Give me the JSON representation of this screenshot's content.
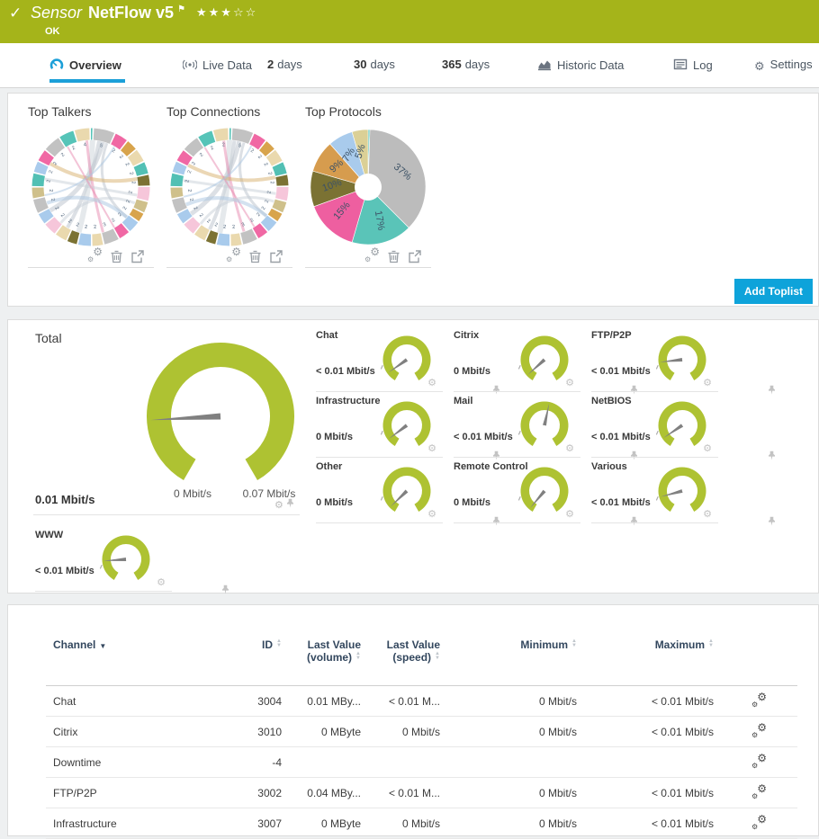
{
  "header": {
    "kind_label": "Sensor",
    "sensor_name": "NetFlow v5",
    "flag": "⚑",
    "rating": "★★★☆☆",
    "status": "OK",
    "check": "✓"
  },
  "tabs": [
    {
      "id": "overview",
      "icon": "gauge",
      "label": "Overview",
      "active": true
    },
    {
      "id": "live-data",
      "icon": "live",
      "label": "Live Data",
      "active": false
    },
    {
      "id": "2-days",
      "num": "2",
      "label": "days",
      "active": false
    },
    {
      "id": "30-days",
      "num": "30",
      "label": "days",
      "active": false
    },
    {
      "id": "365-days",
      "num": "365",
      "label": "days",
      "active": false
    },
    {
      "id": "historic-data",
      "icon": "historic",
      "label": "Historic Data",
      "active": false
    },
    {
      "id": "log",
      "icon": "log",
      "label": "Log",
      "active": false
    },
    {
      "id": "settings",
      "icon": "settings",
      "label": "Settings",
      "active": false
    }
  ],
  "toplists": {
    "titles": [
      "Top Talkers",
      "Top Connections",
      "Top Protocols"
    ],
    "add_button_label": "Add Toplist",
    "item_actions": [
      "settings-gears-icon",
      "delete-trash-icon",
      "open-external-icon"
    ]
  },
  "chart_data": [
    {
      "type": "chord",
      "title": "Top Talkers",
      "segments": [
        [
          "#56c4b8",
          3
        ],
        [
          "#c2c2c2",
          22
        ],
        [
          "#f068a4",
          14
        ],
        [
          "#d8a44c",
          12
        ],
        [
          "#ead9ae",
          14
        ],
        [
          "#52c0b4",
          13
        ],
        [
          "#7b7233",
          12
        ],
        [
          "#f6c6da",
          15
        ],
        [
          "#cfc08b",
          12
        ],
        [
          "#d8a44c",
          10
        ],
        [
          "#a9cbec",
          13
        ],
        [
          "#f068a4",
          12
        ],
        [
          "#c2c2c2",
          16
        ],
        [
          "#ead9ae",
          12
        ],
        [
          "#a9cbec",
          14
        ],
        [
          "#7b7233",
          11
        ],
        [
          "#ead9ae",
          13
        ],
        [
          "#f6c6da",
          14
        ],
        [
          "#a9cbec",
          12
        ],
        [
          "#c2c2c2",
          15
        ],
        [
          "#cfc08b",
          12
        ],
        [
          "#52c0b4",
          14
        ],
        [
          "#a9cbec",
          12
        ],
        [
          "#f068a4",
          13
        ],
        [
          "#c2c2c2",
          18
        ],
        [
          "#56c4b8",
          16
        ],
        [
          "#ead9ae",
          16
        ]
      ],
      "labels": [
        "",
        "5",
        "2",
        "2",
        "2",
        "2",
        "2",
        "2",
        "2",
        "2",
        "2",
        "2",
        "3",
        "2",
        "2",
        "2",
        "2",
        "2",
        "2",
        "2",
        "2",
        "2",
        "2",
        "2",
        "2",
        "2",
        "4"
      ],
      "chords": [
        {
          "a": 75,
          "b": 210,
          "c": "#b9c2cc",
          "w": 5
        },
        {
          "a": 80,
          "b": 240,
          "c": "#b9c2cc",
          "w": 4
        },
        {
          "a": 88,
          "b": 255,
          "c": "#ccd3da",
          "w": 6
        },
        {
          "a": 95,
          "b": 285,
          "c": "#e88ab0",
          "w": 3
        },
        {
          "a": 70,
          "b": 320,
          "c": "#b9c2cc",
          "w": 3
        },
        {
          "a": 150,
          "b": 10,
          "c": "#d8b06c",
          "w": 4
        },
        {
          "a": 170,
          "b": 350,
          "c": "#c7d0d8",
          "w": 3
        },
        {
          "a": 120,
          "b": 300,
          "c": "#e88ab0",
          "w": 2
        },
        {
          "a": 200,
          "b": 320,
          "c": "#aac6e2",
          "w": 4
        },
        {
          "a": 230,
          "b": 340,
          "c": "#c7d0d8",
          "w": 3
        },
        {
          "a": 60,
          "b": 190,
          "c": "#aac6e2",
          "w": 2
        }
      ]
    },
    {
      "type": "chord",
      "title": "Top Connections",
      "segments": [
        [
          "#56c4b8",
          3
        ],
        [
          "#c2c2c2",
          22
        ],
        [
          "#f068a4",
          14
        ],
        [
          "#d8a44c",
          12
        ],
        [
          "#ead9ae",
          14
        ],
        [
          "#52c0b4",
          13
        ],
        [
          "#7b7233",
          12
        ],
        [
          "#f6c6da",
          15
        ],
        [
          "#cfc08b",
          12
        ],
        [
          "#d8a44c",
          10
        ],
        [
          "#a9cbec",
          13
        ],
        [
          "#f068a4",
          12
        ],
        [
          "#c2c2c2",
          16
        ],
        [
          "#ead9ae",
          12
        ],
        [
          "#a9cbec",
          14
        ],
        [
          "#7b7233",
          11
        ],
        [
          "#ead9ae",
          13
        ],
        [
          "#f6c6da",
          14
        ],
        [
          "#a9cbec",
          12
        ],
        [
          "#c2c2c2",
          15
        ],
        [
          "#cfc08b",
          12
        ],
        [
          "#52c0b4",
          14
        ],
        [
          "#a9cbec",
          12
        ],
        [
          "#f068a4",
          13
        ],
        [
          "#c2c2c2",
          18
        ],
        [
          "#56c4b8",
          16
        ],
        [
          "#ead9ae",
          16
        ]
      ],
      "labels": [
        "",
        "5",
        "2",
        "2",
        "2",
        "2",
        "2",
        "2",
        "2",
        "2",
        "2",
        "2",
        "3",
        "2",
        "2",
        "2",
        "2",
        "2",
        "2",
        "2",
        "2",
        "2",
        "2",
        "2",
        "2",
        "2",
        "2"
      ],
      "chords": [
        {
          "a": 78,
          "b": 215,
          "c": "#b9c2cc",
          "w": 5
        },
        {
          "a": 84,
          "b": 245,
          "c": "#b9c2cc",
          "w": 4
        },
        {
          "a": 90,
          "b": 258,
          "c": "#ccd3da",
          "w": 6
        },
        {
          "a": 97,
          "b": 288,
          "c": "#e88ab0",
          "w": 3
        },
        {
          "a": 72,
          "b": 322,
          "c": "#b9c2cc",
          "w": 3
        },
        {
          "a": 152,
          "b": 12,
          "c": "#d8b06c",
          "w": 4
        },
        {
          "a": 172,
          "b": 352,
          "c": "#c7d0d8",
          "w": 3
        },
        {
          "a": 122,
          "b": 302,
          "c": "#e88ab0",
          "w": 2
        },
        {
          "a": 202,
          "b": 322,
          "c": "#aac6e2",
          "w": 4
        },
        {
          "a": 232,
          "b": 342,
          "c": "#c7d0d8",
          "w": 3
        },
        {
          "a": 62,
          "b": 192,
          "c": "#aac6e2",
          "w": 2
        }
      ]
    },
    {
      "type": "pie",
      "title": "Top Protocols",
      "values": [
        0.5,
        37,
        17,
        15,
        10,
        9,
        7,
        4.5
      ],
      "slice_labels": [
        "",
        "37%",
        "17%",
        "15%",
        "10%",
        "9%",
        "7%",
        "5%"
      ],
      "colors": [
        "#56c4b8",
        "#bcbcbc",
        "#5ac4b8",
        "#ee5fa0",
        "#7b7233",
        "#d69c4e",
        "#a9cbec",
        "#dbd096"
      ],
      "label_rotations": [
        0,
        40,
        80,
        -50,
        -20,
        -42,
        -58,
        -72
      ]
    }
  ],
  "gauges": {
    "total": {
      "label": "Total",
      "value": "0.01 Mbit/s",
      "min_label": "0 Mbit/s",
      "max_label": "0.07 Mbit/s",
      "needle_deg": 183
    },
    "channels": [
      {
        "label": "Chat",
        "value": "< 0.01 Mbit/s",
        "needle_deg": 215
      },
      {
        "label": "Citrix",
        "value": "0 Mbit/s",
        "needle_deg": 222
      },
      {
        "label": "FTP/P2P",
        "value": "< 0.01 Mbit/s",
        "needle_deg": 186
      },
      {
        "label": "Infrastructure",
        "value": "0 Mbit/s",
        "needle_deg": 217
      },
      {
        "label": "Mail",
        "value": "< 0.01 Mbit/s",
        "needle_deg": 78
      },
      {
        "label": "NetBIOS",
        "value": "< 0.01 Mbit/s",
        "needle_deg": 214
      },
      {
        "label": "Other",
        "value": "0 Mbit/s",
        "needle_deg": 224
      },
      {
        "label": "Remote Control",
        "value": "0 Mbit/s",
        "needle_deg": 230
      },
      {
        "label": "Various",
        "value": "< 0.01 Mbit/s",
        "needle_deg": 195
      },
      {
        "label": "WWW",
        "value": "< 0.01 Mbit/s",
        "needle_deg": 184
      }
    ],
    "cell_actions": [
      "gear-icon",
      "pin-icon"
    ]
  },
  "table": {
    "columns": [
      {
        "key": "channel",
        "label_lines": [
          "Channel"
        ],
        "sort": "sorted-desc"
      },
      {
        "key": "id",
        "label_lines": [
          "ID"
        ],
        "sort": "updown"
      },
      {
        "key": "last_volume",
        "label_lines": [
          "Last Value",
          "(volume)"
        ],
        "sort": "updown"
      },
      {
        "key": "last_speed",
        "label_lines": [
          "Last Value",
          "(speed)"
        ],
        "sort": "updown"
      },
      {
        "key": "min",
        "label_lines": [
          "Minimum"
        ],
        "sort": "updown"
      },
      {
        "key": "max",
        "label_lines": [
          "Maximum"
        ],
        "sort": "updown"
      },
      {
        "key": "actions",
        "label_lines": [],
        "sort": "none"
      }
    ],
    "rows": [
      {
        "channel": "Chat",
        "id": "3004",
        "last_volume": "0.01 MBy...",
        "last_speed": "< 0.01 M...",
        "min": "0 Mbit/s",
        "max": "< 0.01 Mbit/s"
      },
      {
        "channel": "Citrix",
        "id": "3010",
        "last_volume": "0 MByte",
        "last_speed": "0 Mbit/s",
        "min": "0 Mbit/s",
        "max": "< 0.01 Mbit/s"
      },
      {
        "channel": "Downtime",
        "id": "-4",
        "last_volume": "",
        "last_speed": "",
        "min": "",
        "max": ""
      },
      {
        "channel": "FTP/P2P",
        "id": "3002",
        "last_volume": "0.04 MBy...",
        "last_speed": "< 0.01 M...",
        "min": "0 Mbit/s",
        "max": "< 0.01 Mbit/s"
      },
      {
        "channel": "Infrastructure",
        "id": "3007",
        "last_volume": "0 MByte",
        "last_speed": "0 Mbit/s",
        "min": "0 Mbit/s",
        "max": "< 0.01 Mbit/s"
      }
    ]
  },
  "colors": {
    "brand_green": "#a5b41a",
    "gauge_green": "#aec232",
    "accent_blue": "#1b9fd8"
  }
}
